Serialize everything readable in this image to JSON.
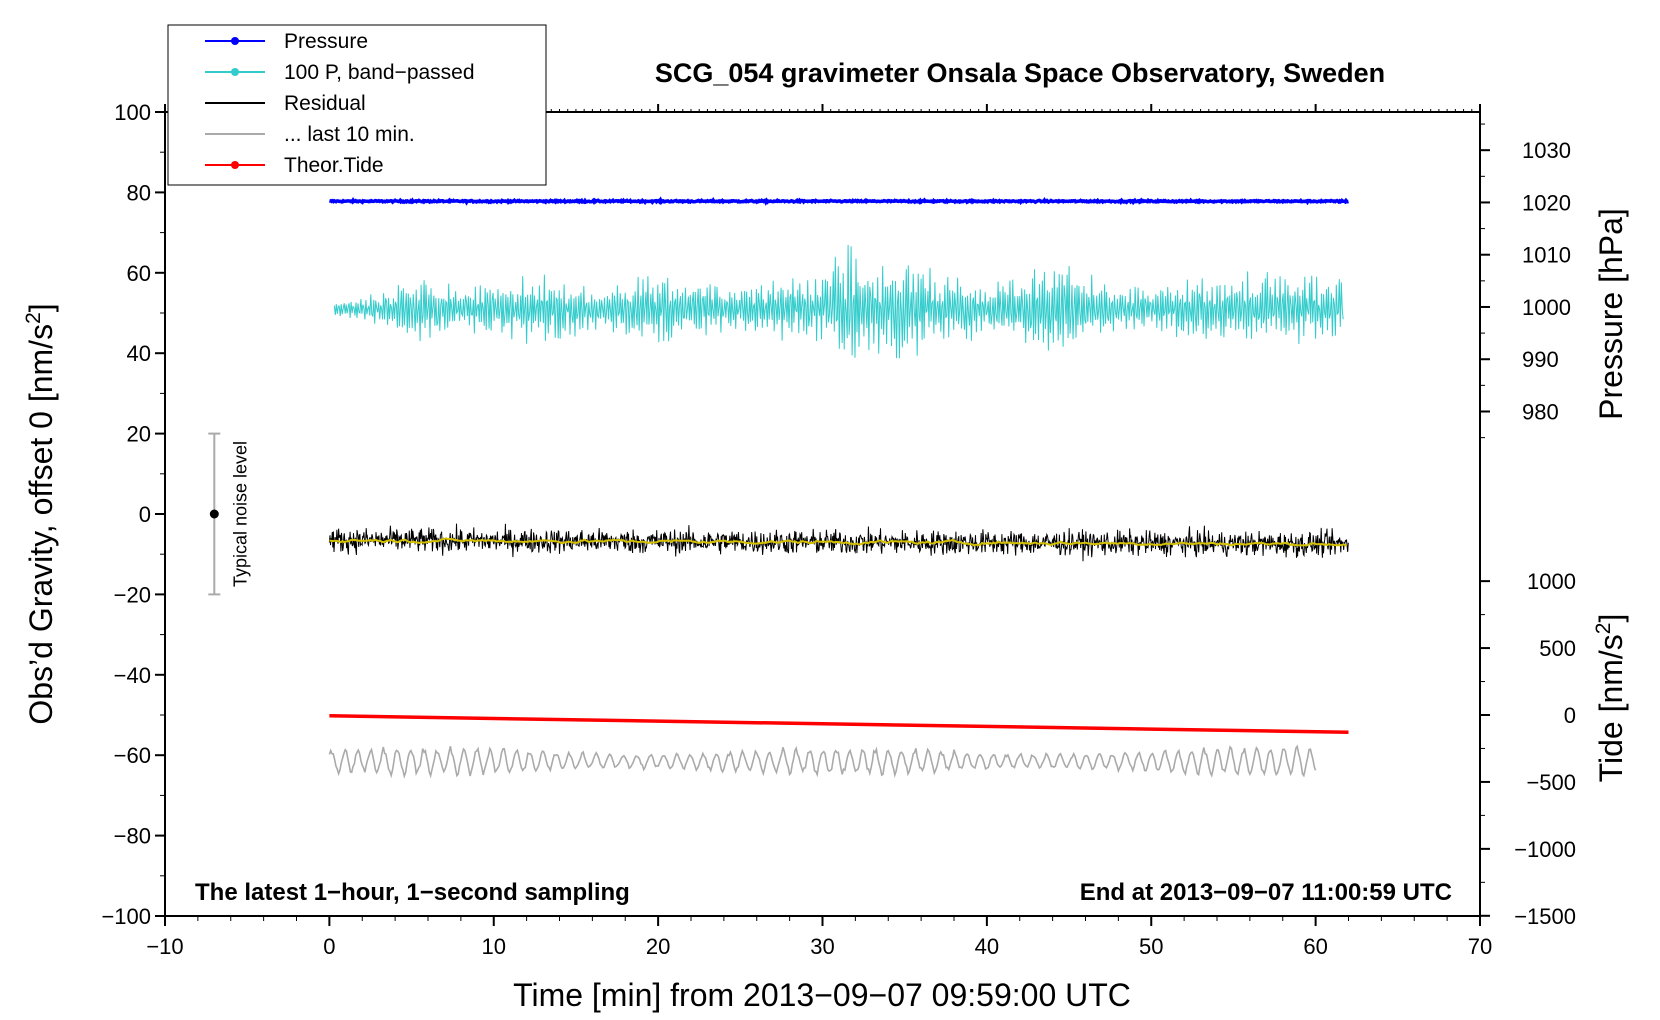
{
  "chart_data": {
    "type": "line",
    "title": "SCG_054 gravimeter Onsala Space Observatory, Sweden",
    "xlabel": "Time [min] from 2013−09−07 09:59:00 UTC",
    "ylabel_main": "Obs’d Gravity, offset 0 [nm/s",
    "ylabel_main_sup": "2",
    "ylabel_main_end": "]",
    "ylabel_pressure": "Pressure [hPa]",
    "ylabel_tide": "Tide [nm/s",
    "ylabel_tide_sup": "2",
    "ylabel_tide_end": "]",
    "xlim": [
      -10,
      70
    ],
    "ylim": [
      -100,
      100
    ],
    "x_ticks": [
      -10,
      0,
      10,
      20,
      30,
      40,
      50,
      60,
      70
    ],
    "x_tick_labels": [
      "−10",
      "0",
      "10",
      "20",
      "30",
      "40",
      "50",
      "60",
      "70"
    ],
    "y_ticks": [
      -100,
      -80,
      -60,
      -40,
      -20,
      0,
      20,
      40,
      60,
      80,
      100
    ],
    "y_tick_labels": [
      "−100",
      "−80",
      "−60",
      "−40",
      "−20",
      "0",
      "20",
      "40",
      "60",
      "80",
      "100"
    ],
    "pressure_axis": {
      "ticks": [
        980,
        990,
        1000,
        1010,
        1020,
        1030
      ],
      "tick_labels": [
        "980",
        "990",
        "1000",
        "1010",
        "1020",
        "1030"
      ],
      "scale_gravity_per_hpa": 1.3,
      "offset_hpa": 1020,
      "offset_gravity": 77.5
    },
    "tide_axis": {
      "ticks": [
        -1500,
        -1000,
        -500,
        0,
        500,
        1000
      ],
      "tick_labels": [
        "−1500",
        "−1000",
        "−500",
        "0",
        "500",
        "1000"
      ],
      "scale_gravity_per_nms2": 0.0333,
      "offset_gravity": -50
    },
    "note_left": "The latest 1−hour, 1−second sampling",
    "note_right": "End at 2013−09−07 11:00:59 UTC",
    "noise_label": "Typical noise level",
    "noise_bar": {
      "x": -7,
      "center": 0,
      "low": -20,
      "high": 20
    },
    "legend": [
      {
        "name": "Pressure",
        "color": "#0000ff",
        "marker": true
      },
      {
        "name": "100 P, band−passed",
        "color": "#33cccc",
        "marker": true
      },
      {
        "name": "Residual",
        "color": "#000000",
        "marker": false
      },
      {
        "name": "... last 10 min.",
        "color": "#aaaaaa",
        "marker": false
      },
      {
        "name": "Theor.Tide",
        "color": "#ff0000",
        "marker": true
      }
    ],
    "series": [
      {
        "name": "Pressure",
        "color": "#0000ff",
        "x_start": 0,
        "x_end": 62,
        "level": 77.8,
        "noise": 0.35
      },
      {
        "name": "100 P, band−passed",
        "color": "#33cccc",
        "x_start": 0.3,
        "x_end": 61.7,
        "mean": 51,
        "envelope": [
          [
            0,
            2
          ],
          [
            3,
            4
          ],
          [
            5,
            10
          ],
          [
            8,
            6
          ],
          [
            12,
            9
          ],
          [
            14,
            10
          ],
          [
            16,
            5
          ],
          [
            20,
            10
          ],
          [
            24,
            6
          ],
          [
            28,
            9
          ],
          [
            30,
            9
          ],
          [
            31.5,
            18
          ],
          [
            33,
            12
          ],
          [
            35,
            14
          ],
          [
            38,
            8
          ],
          [
            42,
            9
          ],
          [
            45,
            13
          ],
          [
            46,
            9
          ],
          [
            50,
            6
          ],
          [
            54,
            10
          ],
          [
            58,
            10
          ],
          [
            61.7,
            9
          ]
        ]
      },
      {
        "name": "Residual",
        "color": "#000000",
        "x_start": 0,
        "x_end": 62,
        "start_level": -6.5,
        "end_level": -7.5,
        "noise": 3
      },
      {
        "name": "Residual smoothed",
        "color": "#d4c000",
        "x_start": 0,
        "x_end": 62,
        "start_level": -6.5,
        "end_level": -7.5,
        "noise": 0.6
      },
      {
        "name": "... last 10 min.",
        "color": "#aaaaaa",
        "x_start": 0,
        "x_end": 60,
        "mean": -61.5,
        "amplitude": 3
      },
      {
        "name": "Theor.Tide",
        "color": "#ff0000",
        "x": [
          0,
          62
        ],
        "y": [
          -50.2,
          -54.3
        ]
      }
    ]
  }
}
